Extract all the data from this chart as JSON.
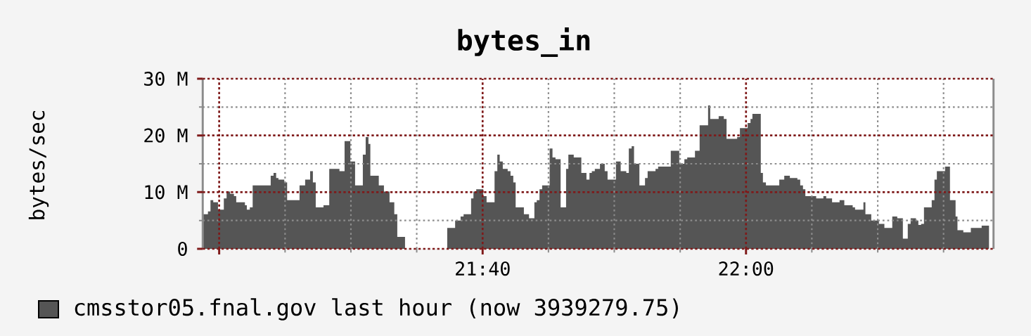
{
  "chart_data": {
    "type": "area",
    "title": "bytes_in",
    "ylabel": "bytes/sec",
    "x": [
      21.3125,
      21.3191,
      21.3223,
      21.3258,
      21.3318,
      21.3392,
      21.3427,
      21.3472,
      21.352,
      21.3549,
      21.3659,
      21.3683,
      21.3721,
      21.3757,
      21.3985,
      21.4021,
      21.4054,
      21.4083,
      21.4157,
      21.4193,
      21.435,
      21.4421,
      21.4484,
      21.4519,
      21.4555,
      21.4653,
      21.4726,
      21.4855,
      21.492,
      21.4993,
      21.5053,
      21.5151,
      21.5187,
      21.5222,
      21.5246,
      21.5353,
      21.5418,
      21.5489,
      21.5549,
      21.5587,
      21.5685,
      21.6219,
      21.6319,
      21.6388,
      21.6426,
      21.6521,
      21.6551,
      21.6586,
      21.6675,
      21.6717,
      21.6818,
      21.6853,
      21.6883,
      21.6922,
      21.6984,
      21.702,
      21.7055,
      21.7085,
      21.7189,
      21.7254,
      21.7322,
      21.7352,
      21.7387,
      21.742,
      21.7515,
      21.7551,
      21.7589,
      21.7654,
      21.7723,
      21.7752,
      21.782,
      21.7916,
      21.7981,
      21.8019,
      21.8049,
      21.8087,
      21.8152,
      21.8212,
      21.8248,
      21.8354,
      21.8414,
      21.8485,
      21.8517,
      21.8553,
      21.8583,
      21.8651,
      21.8722,
      21.8755,
      21.8855,
      21.8888,
      21.9048,
      21.9155,
      21.922,
      21.9256,
      21.9354,
      21.9413,
      21.952,
      21.9547,
      21.9654,
      21.9719,
      21.9754,
      21.9888,
      21.9923,
      22.0021,
      22.0057,
      22.0081,
      22.0187,
      22.0214,
      22.0252,
      22.0421,
      22.0484,
      22.0555,
      22.065,
      22.0686,
      22.0721,
      22.0751,
      22.0888,
      22.0979,
      22.1015,
      22.1089,
      22.1184,
      22.1244,
      22.135,
      22.138,
      22.1486,
      22.1511,
      22.1585,
      22.1682,
      22.1751,
      22.1851,
      22.1914,
      22.1985,
      22.2047,
      22.2083,
      22.2151,
      22.2181,
      22.2216,
      22.2252,
      22.235,
      22.2385,
      22.2415,
      22.2519,
      22.2581,
      22.2652,
      22.2676,
      22.275,
      22.2845,
      22.2982,
      22.3077
    ],
    "series": [
      {
        "name": "cmsstor05.fnal.gov last hour (now 3939279.75)",
        "color": "#555555",
        "values": [
          6.1,
          6.6,
          8.6,
          8.2,
          6.9,
          8.9,
          10.1,
          9.7,
          9.3,
          8.2,
          7.7,
          6.9,
          7.3,
          11.2,
          12.9,
          13.4,
          12.5,
          12.2,
          11.7,
          8.6,
          11.2,
          12.2,
          13.7,
          11.7,
          7.3,
          7.7,
          14.1,
          13.7,
          19.0,
          15.4,
          11.2,
          16.6,
          19.7,
          18.5,
          12.9,
          11.2,
          10.1,
          8.2,
          6.1,
          2.1,
          0,
          3.7,
          5.0,
          5.7,
          6.1,
          8.9,
          10.1,
          10.5,
          9.3,
          8.2,
          13.7,
          16.6,
          15.4,
          14.1,
          13.7,
          12.9,
          11.7,
          7.3,
          6.1,
          5.4,
          8.2,
          8.6,
          10.5,
          11.2,
          17.7,
          16.1,
          15.8,
          7.3,
          14.1,
          16.6,
          16.1,
          13.4,
          12.2,
          13.4,
          13.7,
          14.1,
          15.0,
          13.7,
          12.2,
          15.4,
          13.7,
          13.4,
          17.7,
          18.1,
          15.0,
          11.2,
          12.5,
          13.7,
          14.1,
          14.5,
          17.3,
          15.0,
          15.8,
          16.1,
          17.3,
          21.8,
          25.3,
          22.9,
          23.4,
          22.9,
          19.4,
          19.7,
          21.3,
          22.2,
          22.9,
          23.8,
          13.4,
          11.7,
          11.2,
          12.2,
          12.9,
          12.5,
          12.2,
          11.2,
          10.5,
          9.3,
          8.9,
          9.3,
          8.9,
          8.2,
          8.6,
          7.7,
          7.3,
          6.9,
          8.2,
          6.1,
          5.0,
          4.4,
          3.7,
          5.7,
          5.4,
          1.8,
          4.4,
          5.4,
          5.0,
          4.2,
          4.4,
          7.3,
          8.6,
          12.2,
          13.7,
          14.5,
          8.6,
          5.7,
          3.3,
          2.9,
          3.7,
          4.1,
          0
        ]
      }
    ],
    "xlim": [
      21.3125,
      22.3132
    ],
    "xticks": [
      {
        "value": 21.3333,
        "label": null
      },
      {
        "value": 21.4167,
        "label": null
      },
      {
        "value": 21.5,
        "label": null
      },
      {
        "value": 21.5833,
        "label": null
      },
      {
        "value": 21.6667,
        "label": "21:40"
      },
      {
        "value": 21.75,
        "label": null
      },
      {
        "value": 21.8333,
        "label": null
      },
      {
        "value": 21.9167,
        "label": null
      },
      {
        "value": 22,
        "label": "22:00"
      },
      {
        "value": 22.0833,
        "label": null
      },
      {
        "value": 22.1667,
        "label": null
      },
      {
        "value": 22.25,
        "label": null
      }
    ],
    "ylim": [
      0,
      30
    ],
    "yticks": [
      0,
      {
        "value": 5,
        "label": null
      },
      {
        "value": 10,
        "label": "10 M"
      },
      {
        "value": 15,
        "label": null
      },
      {
        "value": 20,
        "label": "20 M"
      },
      {
        "value": 25,
        "label": null
      },
      {
        "value": 30,
        "label": "30 M"
      }
    ],
    "grid": true,
    "legend": "bottom"
  }
}
